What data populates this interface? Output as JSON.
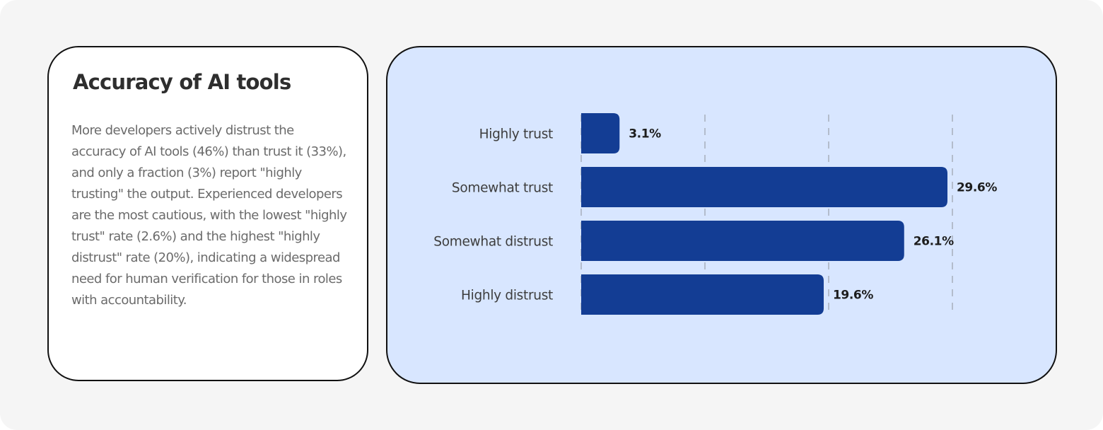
{
  "panel": {
    "title": "Accuracy of AI tools",
    "body": "More developers actively distrust the accuracy of AI tools (46%) than trust it (33%), and only a fraction (3%) report \"highly trusting\" the output. Experienced developers are the most cautious, with the lowest \"highly trust\" rate (2.6%) and the highest \"highly distrust\" rate (20%), indicating a widespread need for human verification for those in roles with accountability."
  },
  "colors": {
    "bar": "#133d94",
    "chart_background": "#d8e6ff",
    "grid": "#b3bccc"
  },
  "chart_data": {
    "type": "bar",
    "orientation": "horizontal",
    "categories": [
      "Highly trust",
      "Somewhat trust",
      "Somewhat distrust",
      "Highly distrust"
    ],
    "values": [
      3.1,
      29.6,
      26.1,
      19.6
    ],
    "value_labels": [
      "3.1%",
      "29.6%",
      "26.1%",
      "19.6%"
    ],
    "xlim": [
      0,
      30
    ],
    "grid": true,
    "grid_style": "dashed vertical",
    "legend": "none"
  }
}
